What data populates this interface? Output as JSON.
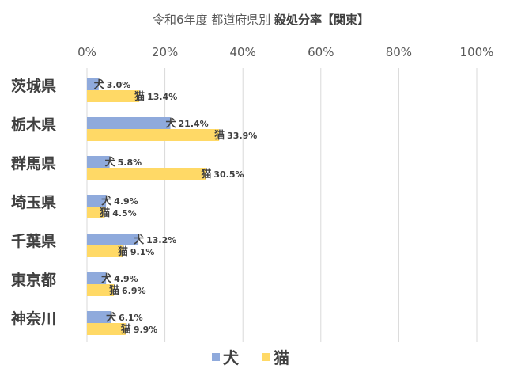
{
  "chart_data": {
    "type": "bar",
    "orientation": "horizontal",
    "title_prefix": "令和6年度 都道府県別 ",
    "title_emphasis": "殺処分率【関東】",
    "categories": [
      "茨城県",
      "栃木県",
      "群馬県",
      "埼玉県",
      "千葉県",
      "東京都",
      "神奈川"
    ],
    "series": [
      {
        "name": "犬",
        "color": "#8faadc",
        "values": [
          3.0,
          21.4,
          5.8,
          4.9,
          13.2,
          4.9,
          6.1
        ]
      },
      {
        "name": "猫",
        "color": "#ffd966",
        "values": [
          13.4,
          33.9,
          30.5,
          4.5,
          9.1,
          6.9,
          9.9
        ]
      }
    ],
    "xlim": [
      0,
      100
    ],
    "x_ticks": [
      "0%",
      "20%",
      "40%",
      "60%",
      "80%",
      "100%"
    ],
    "x_tick_values": [
      0,
      20,
      40,
      60,
      80,
      100
    ],
    "value_suffix": "%",
    "grid": true,
    "legend_position": "bottom"
  }
}
